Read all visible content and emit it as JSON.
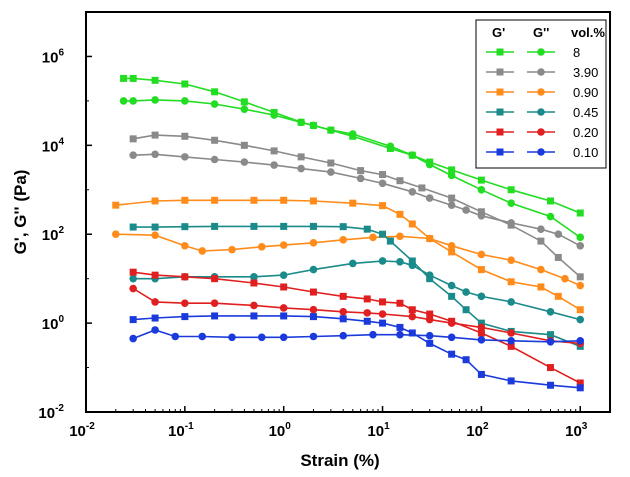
{
  "chart_data": {
    "type": "line",
    "title": "",
    "xlabel": "Strain (%)",
    "ylabel": "G', G'' (Pa)",
    "x_scale": "log",
    "y_scale": "log",
    "xlim": [
      0.01,
      2000
    ],
    "ylim": [
      0.01,
      10000000
    ],
    "x_ticks": [
      {
        "value": 0.01,
        "label_base": "10",
        "label_exp": "-2"
      },
      {
        "value": 0.1,
        "label_base": "10",
        "label_exp": "-1"
      },
      {
        "value": 1,
        "label_base": "10",
        "label_exp": "0"
      },
      {
        "value": 10,
        "label_base": "10",
        "label_exp": "1"
      },
      {
        "value": 100,
        "label_base": "10",
        "label_exp": "2"
      },
      {
        "value": 1000,
        "label_base": "10",
        "label_exp": "3"
      }
    ],
    "y_ticks": [
      {
        "value": 0.01,
        "label_base": "10",
        "label_exp": "-2"
      },
      {
        "value": 1,
        "label_base": "10",
        "label_exp": "0"
      },
      {
        "value": 100,
        "label_base": "10",
        "label_exp": "2"
      },
      {
        "value": 10000,
        "label_base": "10",
        "label_exp": "4"
      },
      {
        "value": 1000000,
        "label_base": "10",
        "label_exp": "6"
      }
    ],
    "grid": false,
    "legend": {
      "placement": "top-right",
      "headers": [
        "G'",
        "G''",
        "vol.%"
      ]
    },
    "series": [
      {
        "group": "8",
        "modulus": "G'",
        "color": "#22dd22",
        "marker": "square",
        "points": [
          [
            0.024,
            320000
          ],
          [
            0.03,
            320000
          ],
          [
            0.05,
            290000
          ],
          [
            0.1,
            240000
          ],
          [
            0.2,
            160000
          ],
          [
            0.4,
            95000
          ],
          [
            0.8,
            55000
          ],
          [
            1.5,
            33000
          ],
          [
            2,
            28000
          ],
          [
            3,
            22000
          ],
          [
            5,
            16000
          ],
          [
            12,
            8500
          ],
          [
            20,
            6000
          ],
          [
            30,
            4200
          ],
          [
            50,
            2800
          ],
          [
            100,
            1650
          ],
          [
            200,
            1000
          ],
          [
            500,
            560
          ],
          [
            1000,
            300
          ]
        ]
      },
      {
        "group": "8",
        "modulus": "G''",
        "color": "#22dd22",
        "marker": "circle",
        "points": [
          [
            0.024,
            100000
          ],
          [
            0.03,
            100000
          ],
          [
            0.05,
            105000
          ],
          [
            0.1,
            100000
          ],
          [
            0.2,
            85000
          ],
          [
            0.4,
            65000
          ],
          [
            0.8,
            48000
          ],
          [
            1.5,
            33000
          ],
          [
            2,
            28000
          ],
          [
            3,
            22000
          ],
          [
            5,
            18000
          ],
          [
            12,
            9500
          ],
          [
            20,
            6000
          ],
          [
            30,
            3700
          ],
          [
            50,
            2100
          ],
          [
            100,
            1000
          ],
          [
            200,
            500
          ],
          [
            500,
            250
          ],
          [
            1000,
            85
          ]
        ]
      },
      {
        "group": "3.90",
        "modulus": "G'",
        "color": "#8a8a8a",
        "marker": "square",
        "points": [
          [
            0.03,
            14000
          ],
          [
            0.05,
            17000
          ],
          [
            0.1,
            16000
          ],
          [
            0.2,
            13000
          ],
          [
            0.4,
            10000
          ],
          [
            0.8,
            7500
          ],
          [
            1.5,
            5500
          ],
          [
            3,
            4000
          ],
          [
            6,
            2700
          ],
          [
            10,
            2200
          ],
          [
            15,
            1600
          ],
          [
            25,
            1100
          ],
          [
            50,
            650
          ],
          [
            100,
            320
          ],
          [
            200,
            160
          ],
          [
            400,
            70
          ],
          [
            600,
            30
          ],
          [
            1000,
            11
          ]
        ]
      },
      {
        "group": "3.90",
        "modulus": "G''",
        "color": "#8a8a8a",
        "marker": "circle",
        "points": [
          [
            0.03,
            6000
          ],
          [
            0.05,
            6300
          ],
          [
            0.1,
            5500
          ],
          [
            0.2,
            4800
          ],
          [
            0.4,
            4200
          ],
          [
            0.8,
            3600
          ],
          [
            1.5,
            3000
          ],
          [
            3,
            2500
          ],
          [
            6,
            1800
          ],
          [
            10,
            1400
          ],
          [
            20,
            900
          ],
          [
            30,
            650
          ],
          [
            50,
            450
          ],
          [
            70,
            350
          ],
          [
            100,
            260
          ],
          [
            200,
            180
          ],
          [
            400,
            130
          ],
          [
            600,
            100
          ],
          [
            1000,
            55
          ]
        ]
      },
      {
        "group": "0.90",
        "modulus": "G'",
        "color": "#ff8c1a",
        "marker": "square",
        "points": [
          [
            0.02,
            450
          ],
          [
            0.05,
            560
          ],
          [
            0.1,
            580
          ],
          [
            0.2,
            580
          ],
          [
            0.5,
            580
          ],
          [
            1,
            580
          ],
          [
            2,
            560
          ],
          [
            5,
            500
          ],
          [
            10,
            440
          ],
          [
            15,
            280
          ],
          [
            20,
            170
          ],
          [
            30,
            80
          ],
          [
            50,
            40
          ],
          [
            100,
            16
          ],
          [
            200,
            8.5
          ],
          [
            400,
            6.5
          ],
          [
            600,
            4
          ],
          [
            1000,
            2
          ]
        ]
      },
      {
        "group": "0.90",
        "modulus": "G''",
        "color": "#ff8c1a",
        "marker": "circle",
        "points": [
          [
            0.02,
            100
          ],
          [
            0.05,
            95
          ],
          [
            0.1,
            55
          ],
          [
            0.15,
            42
          ],
          [
            0.3,
            45
          ],
          [
            0.6,
            52
          ],
          [
            1,
            57
          ],
          [
            2,
            64
          ],
          [
            4,
            75
          ],
          [
            8,
            85
          ],
          [
            15,
            90
          ],
          [
            30,
            80
          ],
          [
            50,
            55
          ],
          [
            100,
            35
          ],
          [
            200,
            26
          ],
          [
            400,
            16
          ],
          [
            700,
            10
          ],
          [
            1000,
            7
          ]
        ]
      },
      {
        "group": "0.45",
        "modulus": "G'",
        "color": "#1a8a8a",
        "marker": "square",
        "points": [
          [
            0.03,
            145
          ],
          [
            0.05,
            145
          ],
          [
            0.1,
            148
          ],
          [
            0.2,
            150
          ],
          [
            0.5,
            150
          ],
          [
            1,
            150
          ],
          [
            2,
            150
          ],
          [
            4,
            148
          ],
          [
            7,
            130
          ],
          [
            10,
            100
          ],
          [
            12,
            70
          ],
          [
            20,
            25
          ],
          [
            30,
            10
          ],
          [
            50,
            4
          ],
          [
            70,
            2
          ],
          [
            100,
            1
          ],
          [
            200,
            0.65
          ],
          [
            500,
            0.55
          ],
          [
            1000,
            0.3
          ]
        ]
      },
      {
        "group": "0.45",
        "modulus": "G''",
        "color": "#1a8a8a",
        "marker": "circle",
        "points": [
          [
            0.03,
            10
          ],
          [
            0.05,
            10
          ],
          [
            0.1,
            11
          ],
          [
            0.2,
            11
          ],
          [
            0.5,
            11
          ],
          [
            1,
            12
          ],
          [
            2,
            16
          ],
          [
            5,
            22
          ],
          [
            10,
            25
          ],
          [
            15,
            24
          ],
          [
            20,
            20
          ],
          [
            30,
            12
          ],
          [
            50,
            7
          ],
          [
            70,
            5
          ],
          [
            100,
            4
          ],
          [
            200,
            3
          ],
          [
            500,
            1.8
          ],
          [
            1000,
            1.2
          ]
        ]
      },
      {
        "group": "0.20",
        "modulus": "G'",
        "color": "#e02020",
        "marker": "square",
        "points": [
          [
            0.03,
            14
          ],
          [
            0.05,
            12
          ],
          [
            0.1,
            11
          ],
          [
            0.2,
            10
          ],
          [
            0.5,
            8
          ],
          [
            1,
            6.5
          ],
          [
            2,
            5
          ],
          [
            4,
            4
          ],
          [
            7,
            3.5
          ],
          [
            10,
            3
          ],
          [
            15,
            2.8
          ],
          [
            20,
            2
          ],
          [
            30,
            1.6
          ],
          [
            50,
            1.1
          ],
          [
            100,
            0.6
          ],
          [
            200,
            0.3
          ],
          [
            500,
            0.1
          ],
          [
            1000,
            0.045
          ]
        ]
      },
      {
        "group": "0.20",
        "modulus": "G''",
        "color": "#e02020",
        "marker": "circle",
        "points": [
          [
            0.03,
            6
          ],
          [
            0.05,
            3
          ],
          [
            0.1,
            2.8
          ],
          [
            0.2,
            2.8
          ],
          [
            0.5,
            2.5
          ],
          [
            1,
            2.2
          ],
          [
            2,
            2
          ],
          [
            4,
            1.8
          ],
          [
            7,
            1.7
          ],
          [
            10,
            1.6
          ],
          [
            20,
            1.4
          ],
          [
            30,
            1.2
          ],
          [
            50,
            1
          ],
          [
            100,
            0.8
          ],
          [
            200,
            0.6
          ],
          [
            500,
            0.4
          ],
          [
            1000,
            0.35
          ]
        ]
      },
      {
        "group": "0.10",
        "modulus": "G'",
        "color": "#1a3adc",
        "marker": "square",
        "points": [
          [
            0.03,
            1.2
          ],
          [
            0.05,
            1.3
          ],
          [
            0.1,
            1.4
          ],
          [
            0.2,
            1.45
          ],
          [
            0.5,
            1.45
          ],
          [
            1,
            1.45
          ],
          [
            2,
            1.4
          ],
          [
            4,
            1.25
          ],
          [
            7,
            1.1
          ],
          [
            10,
            1
          ],
          [
            15,
            0.8
          ],
          [
            20,
            0.6
          ],
          [
            30,
            0.35
          ],
          [
            50,
            0.2
          ],
          [
            70,
            0.15
          ],
          [
            100,
            0.07
          ],
          [
            200,
            0.05
          ],
          [
            500,
            0.04
          ],
          [
            1000,
            0.035
          ]
        ]
      },
      {
        "group": "0.10",
        "modulus": "G''",
        "color": "#1a3adc",
        "marker": "circle",
        "points": [
          [
            0.03,
            0.45
          ],
          [
            0.05,
            0.7
          ],
          [
            0.08,
            0.5
          ],
          [
            0.15,
            0.5
          ],
          [
            0.3,
            0.48
          ],
          [
            0.6,
            0.48
          ],
          [
            1,
            0.48
          ],
          [
            2,
            0.5
          ],
          [
            4,
            0.52
          ],
          [
            8,
            0.55
          ],
          [
            15,
            0.55
          ],
          [
            30,
            0.52
          ],
          [
            50,
            0.48
          ],
          [
            100,
            0.42
          ],
          [
            200,
            0.4
          ],
          [
            500,
            0.38
          ],
          [
            1000,
            0.4
          ]
        ]
      }
    ],
    "legend_rows": [
      {
        "label": "8",
        "color": "#22dd22"
      },
      {
        "label": "3.90",
        "color": "#8a8a8a"
      },
      {
        "label": "0.90",
        "color": "#ff8c1a"
      },
      {
        "label": "0.45",
        "color": "#1a8a8a"
      },
      {
        "label": "0.20",
        "color": "#e02020"
      },
      {
        "label": "0.10",
        "color": "#1a3adc"
      }
    ]
  }
}
